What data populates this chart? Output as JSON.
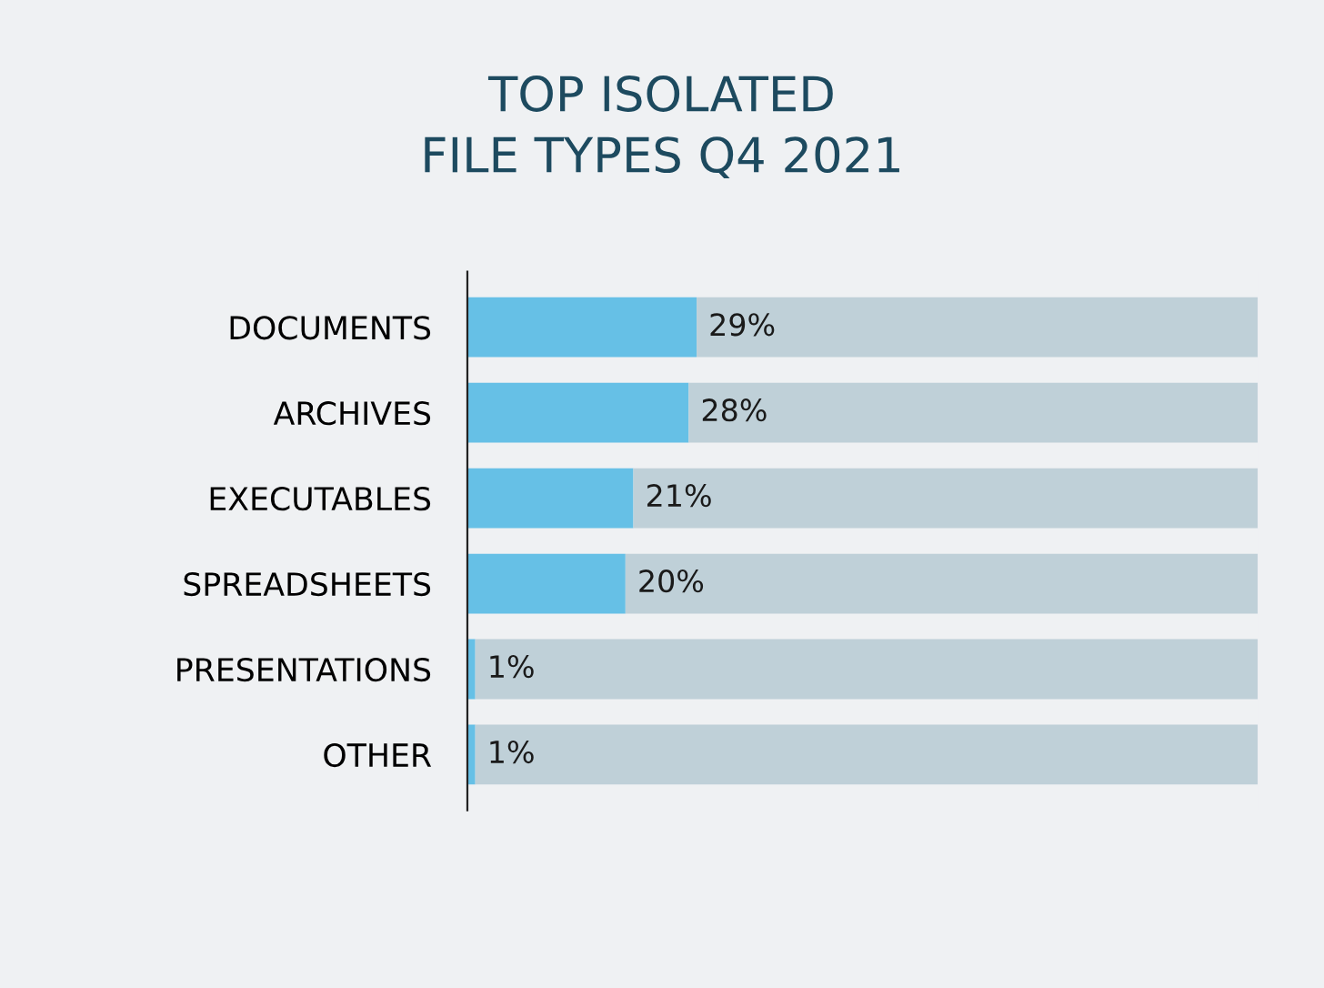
{
  "chart_data": {
    "type": "bar",
    "title": "TOP ISOLATED\nFILE TYPES Q4 2021",
    "orientation": "horizontal",
    "stacked": true,
    "categories": [
      "DOCUMENTS",
      "ARCHIVES",
      "EXECUTABLES",
      "SPREADSHEETS",
      "PRESENTATIONS",
      "OTHER"
    ],
    "series": [
      {
        "color": "#66c0e6",
        "values": [
          29,
          28,
          21,
          20,
          1,
          1
        ],
        "value_labels": [
          "29%",
          "28%",
          "21%",
          "20%",
          "1%",
          "1%"
        ]
      },
      {
        "color": "#bfd0d8",
        "values": [
          71,
          72,
          79,
          80,
          99,
          99
        ]
      }
    ],
    "xlim": [
      0,
      100
    ],
    "tick_labels": "y",
    "grid": false,
    "legend": false
  }
}
